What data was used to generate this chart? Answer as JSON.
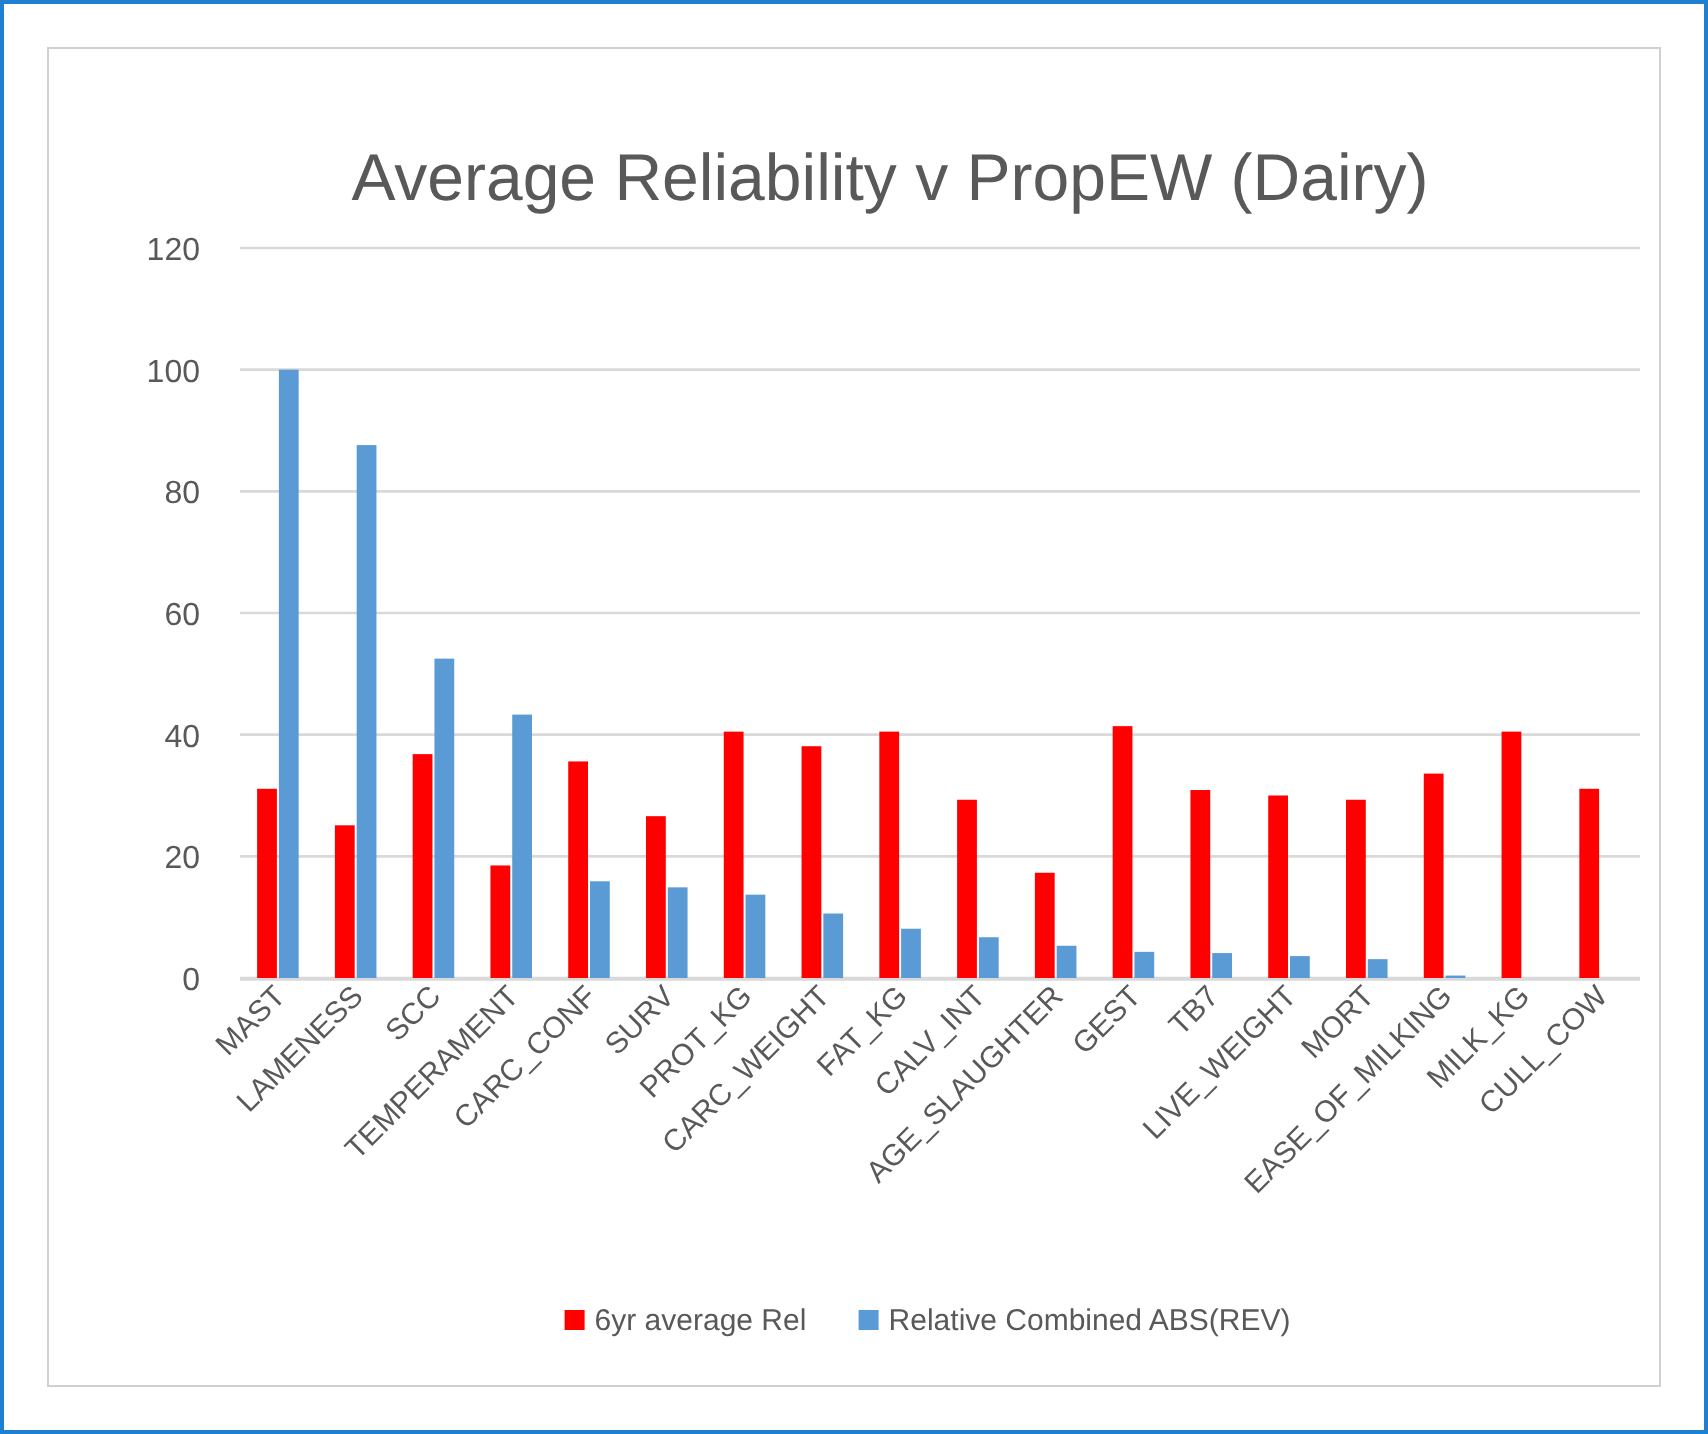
{
  "chart_data": {
    "type": "bar",
    "title": "Average Reliability v PropEW (Dairy)",
    "categories": [
      "MAST",
      "LAMENESS",
      "SCC",
      "TEMPERAMENT",
      "CARC_CONF",
      "SURV",
      "PROT_KG",
      "CARC_WEIGHT",
      "FAT_KG",
      "CALV_INT",
      "AGE_SLAUGHTER",
      "GEST",
      "TB7",
      "LIVE_WEIGHT",
      "MORT",
      "EASE_OF_MILKING",
      "MILK_KG",
      "CULL_COW"
    ],
    "series": [
      {
        "name": "6yr average Rel",
        "color": "#ff0000",
        "values": [
          31.1,
          25.1,
          36.8,
          18.5,
          35.6,
          26.6,
          40.5,
          38.1,
          40.5,
          29.3,
          17.3,
          41.4,
          30.9,
          30.0,
          29.3,
          33.6,
          40.5,
          31.1
        ]
      },
      {
        "name": "Relative Combined ABS(REV)",
        "color": "#5b9bd5",
        "values": [
          100,
          87.6,
          52.5,
          43.3,
          15.9,
          14.9,
          13.7,
          10.6,
          8.1,
          6.7,
          5.3,
          4.3,
          4.1,
          3.6,
          3.1,
          0.4,
          0,
          0
        ]
      }
    ],
    "ylim": [
      0,
      120
    ],
    "yticks": [
      0,
      20,
      40,
      60,
      80,
      100,
      120
    ],
    "grid": "y",
    "legend": "bottom"
  }
}
